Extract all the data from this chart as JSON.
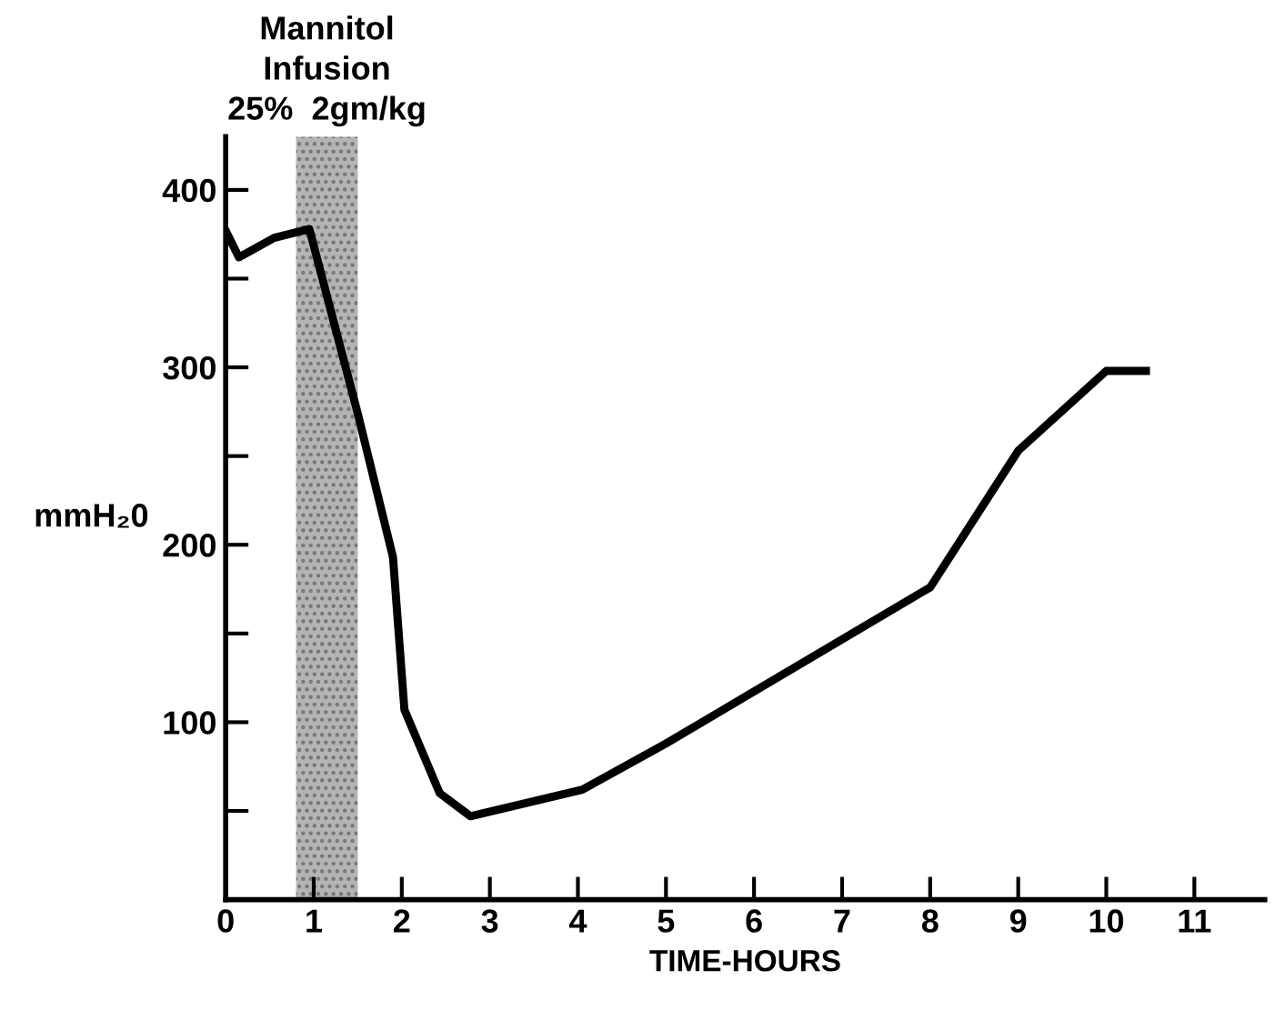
{
  "chart_data": {
    "type": "line",
    "xlabel": "TIME-HOURS",
    "ylabel": "mmH₂0",
    "x": [
      0,
      0.15,
      0.55,
      0.95,
      1.5,
      1.9,
      2.03,
      2.43,
      2.78,
      4.05,
      5,
      8,
      9,
      10,
      10.45
    ],
    "series": [
      {
        "color": "#000000",
        "values": [
          377,
          362,
          373,
          378,
          274,
          193,
          107,
          60,
          47,
          62,
          88,
          176,
          253,
          298,
          298
        ]
      }
    ],
    "xlim": [
      0,
      11.8
    ],
    "ylim": [
      0,
      430
    ],
    "xticks": [
      0,
      1,
      2,
      3,
      4,
      5,
      6,
      7,
      8,
      9,
      10,
      11
    ],
    "yticks": [
      {
        "value": 50,
        "label": null
      },
      100,
      {
        "value": 150,
        "label": null
      },
      200,
      {
        "value": 250,
        "label": null
      },
      300,
      {
        "value": 350,
        "label": null
      },
      400
    ],
    "bands": [
      {
        "axis": "x",
        "from": 0.8,
        "to": 1.5,
        "label": "Mannitol\nInfusion\n25%  2gm/kg",
        "color": "#b4b4b4"
      }
    ],
    "grid": false,
    "marker": "none",
    "line_style": "solid"
  }
}
